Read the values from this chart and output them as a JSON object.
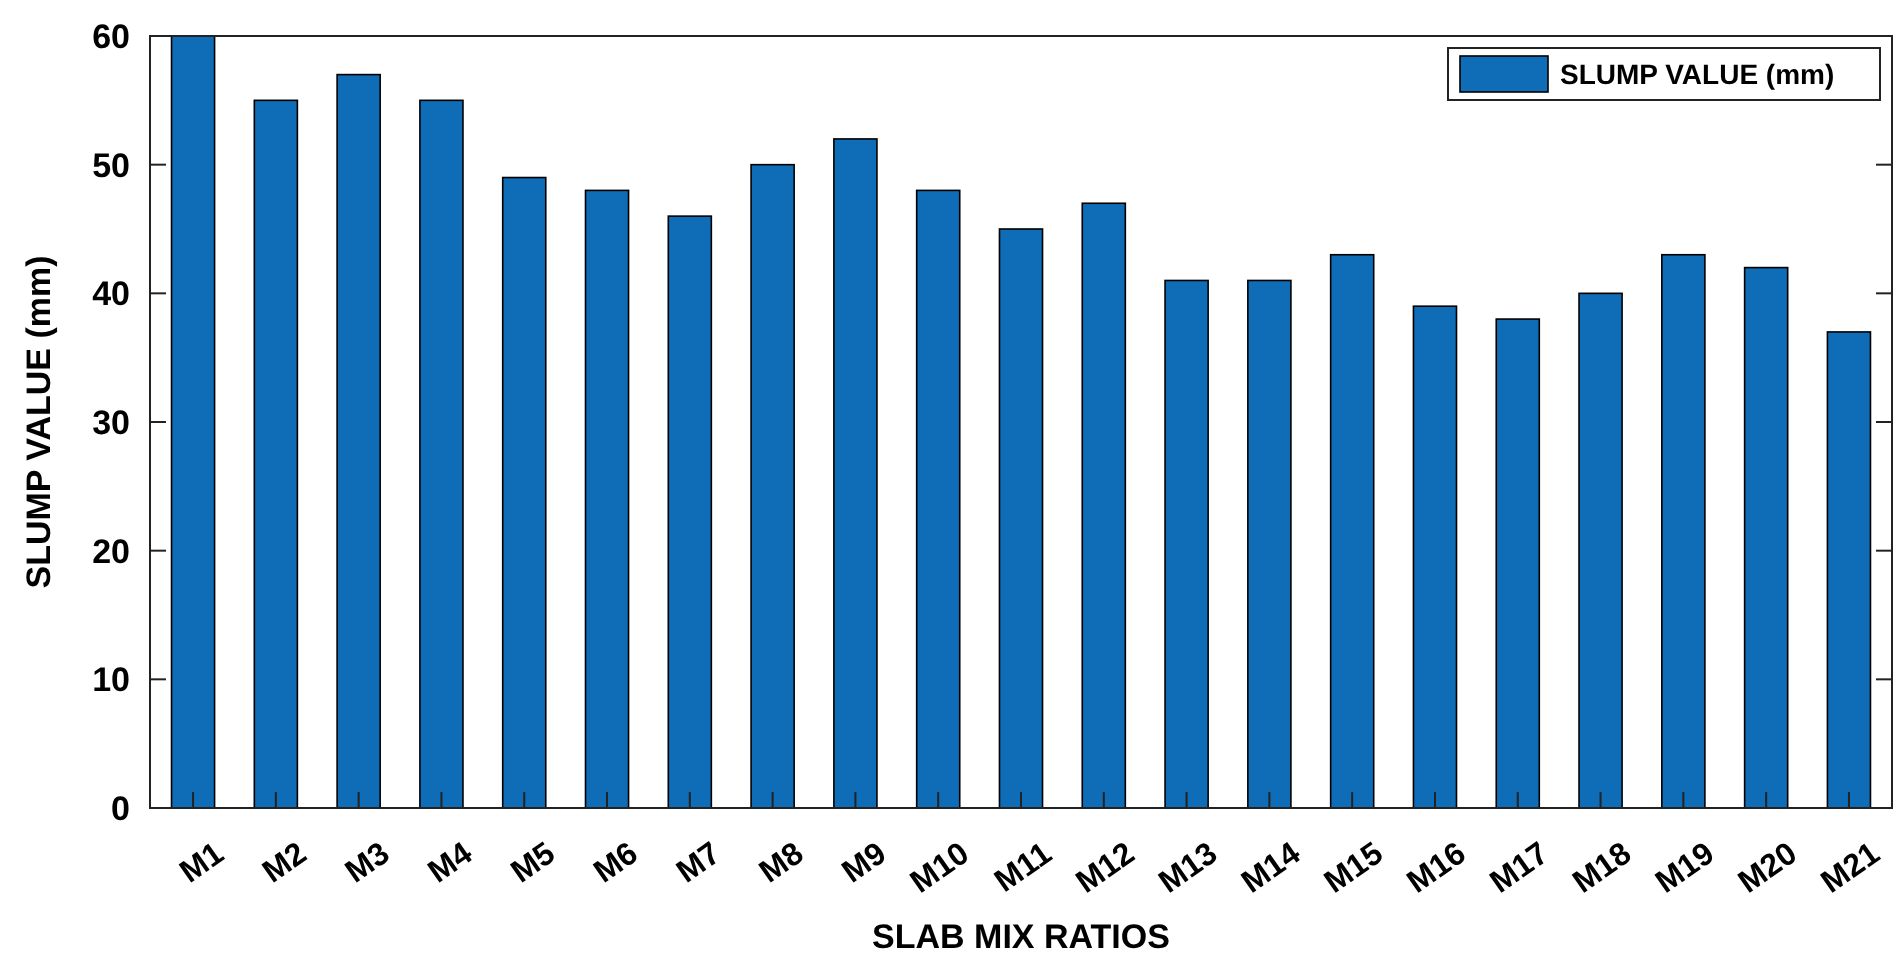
{
  "chart_data": {
    "type": "bar",
    "xlabel": "SLAB MIX RATIOS",
    "ylabel": "SLUMP VALUE (mm)",
    "categories": [
      "M1",
      "M2",
      "M3",
      "M4",
      "M5",
      "M6",
      "M7",
      "M8",
      "M9",
      "M10",
      "M11",
      "M12",
      "M13",
      "M14",
      "M15",
      "M16",
      "M17",
      "M18",
      "M19",
      "M20",
      "M21"
    ],
    "series": [
      {
        "name": "SLUMP VALUE (mm)",
        "color": "#0f6cb6",
        "values": [
          60,
          55,
          57,
          55,
          49,
          48,
          46,
          50,
          52,
          48,
          45,
          47,
          41,
          41,
          43,
          39,
          38,
          40,
          43,
          42,
          37
        ]
      }
    ],
    "ylim": [
      0,
      60
    ],
    "yticks": [
      0,
      10,
      20,
      30,
      40,
      50,
      60
    ],
    "grid": false,
    "legend": "top right"
  }
}
